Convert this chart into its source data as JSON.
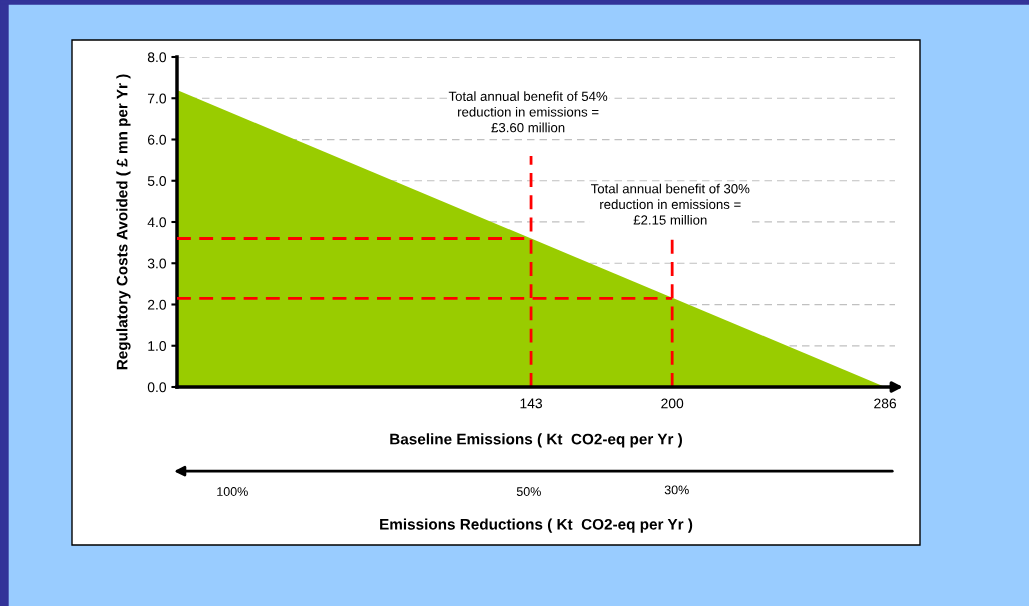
{
  "chart_data": {
    "type": "area",
    "xlabel": "Baseline Emissions ( Kt  CO2-eq per Yr )",
    "ylabel": "Regulatory Costs Avoided ( £ mn per Yr )",
    "x2label": "Emissions Reductions ( Kt  CO2-eq per Yr )",
    "xlim": [
      0,
      290
    ],
    "ylim": [
      0,
      8
    ],
    "xticks": [
      143,
      200,
      286
    ],
    "yticks": [
      {
        "value": 0,
        "label": "0.0"
      },
      {
        "value": 1,
        "label": "1.0"
      },
      {
        "value": 2,
        "label": "2.0"
      },
      {
        "value": 3,
        "label": "3.0"
      },
      {
        "value": 4,
        "label": "4.0"
      },
      {
        "value": 5,
        "label": "5.0"
      },
      {
        "value": 6,
        "label": "6.0"
      },
      {
        "value": 7,
        "label": "7.0"
      },
      {
        "value": 8,
        "label": "8.0"
      }
    ],
    "grid": "y",
    "marker": "none",
    "series": [
      {
        "color": "#99cc00",
        "x": [
          0,
          286
        ],
        "values": [
          7.2,
          0
        ]
      },
      {
        "type": "line",
        "color": "#ff0000",
        "line_style": "dashed",
        "x": [
          143,
          143
        ],
        "values": [
          0,
          5.6
        ]
      },
      {
        "type": "line",
        "color": "#ff0000",
        "line_style": "dashed",
        "x": [
          200,
          200
        ],
        "values": [
          0,
          3.6
        ]
      },
      {
        "type": "line",
        "color": "#ff0000",
        "line_style": "dashed",
        "x": [
          0,
          143
        ],
        "values": [
          3.6,
          3.6
        ]
      },
      {
        "type": "line",
        "color": "#ff0000",
        "line_style": "dashed",
        "x": [
          0,
          200
        ],
        "values": [
          2.15,
          2.15
        ]
      }
    ],
    "annotations": [
      "Total annual benefit of 54%\nreduction in emissions =\n£3.60 million",
      "Total annual benefit of 30%\nreduction in emissions =\n£2.15 million",
      "100%",
      "50%",
      "30%"
    ]
  }
}
